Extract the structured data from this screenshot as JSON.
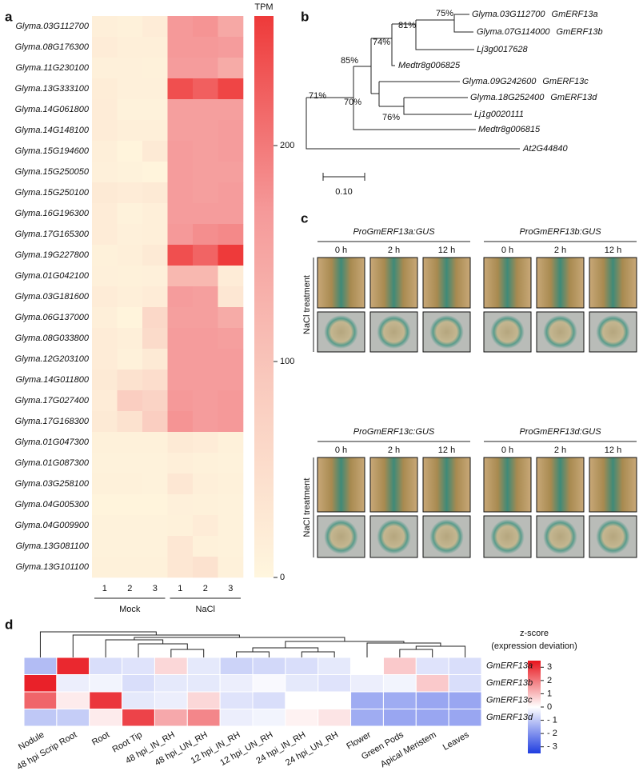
{
  "panel_a": {
    "label": "a",
    "type": "heatmap",
    "rows": [
      "Glyma.03G112700",
      "Glyma.08G176300",
      "Glyma.11G230100",
      "Glyma.13G333100",
      "Glyma.14G061800",
      "Glyma.14G148100",
      "Glyma.15G194600",
      "Glyma.15G250050",
      "Glyma.15G250100",
      "Glyma.16G196300",
      "Glyma.17G165300",
      "Glyma.19G227800",
      "Glyma.01G042100",
      "Glyma.03G181600",
      "Glyma.06G137000",
      "Glyma.08G033800",
      "Glyma.12G203100",
      "Glyma.14G011800",
      "Glyma.17G027400",
      "Glyma.17G168300",
      "Glyma.01G047300",
      "Glyma.01G087300",
      "Glyma.03G258100",
      "Glyma.04G005300",
      "Glyma.04G009900",
      "Glyma.13G081100",
      "Glyma.13G101100"
    ],
    "columns": [
      "1",
      "2",
      "3",
      "1",
      "2",
      "3"
    ],
    "groups": [
      "Mock",
      "NaCl"
    ],
    "values": [
      [
        15,
        10,
        20,
        170,
        175,
        145
      ],
      [
        20,
        15,
        15,
        170,
        170,
        165
      ],
      [
        12,
        12,
        10,
        165,
        165,
        140
      ],
      [
        18,
        12,
        12,
        240,
        225,
        250
      ],
      [
        20,
        8,
        8,
        160,
        160,
        160
      ],
      [
        20,
        15,
        15,
        160,
        160,
        165
      ],
      [
        15,
        5,
        25,
        165,
        160,
        165
      ],
      [
        12,
        8,
        5,
        165,
        160,
        160
      ],
      [
        25,
        20,
        25,
        165,
        160,
        165
      ],
      [
        20,
        8,
        15,
        165,
        165,
        165
      ],
      [
        20,
        12,
        15,
        170,
        180,
        185
      ],
      [
        10,
        15,
        25,
        240,
        220,
        260
      ],
      [
        12,
        10,
        12,
        120,
        120,
        20
      ],
      [
        20,
        15,
        20,
        165,
        160,
        30
      ],
      [
        15,
        5,
        60,
        160,
        160,
        140
      ],
      [
        20,
        15,
        55,
        165,
        165,
        160
      ],
      [
        20,
        10,
        25,
        165,
        165,
        165
      ],
      [
        25,
        40,
        50,
        165,
        165,
        165
      ],
      [
        20,
        80,
        70,
        170,
        165,
        170
      ],
      [
        25,
        40,
        80,
        175,
        165,
        170
      ],
      [
        10,
        10,
        10,
        25,
        20,
        10
      ],
      [
        8,
        8,
        8,
        15,
        10,
        8
      ],
      [
        10,
        10,
        8,
        30,
        15,
        10
      ],
      [
        5,
        5,
        5,
        12,
        10,
        8
      ],
      [
        8,
        8,
        8,
        10,
        20,
        8
      ],
      [
        8,
        8,
        8,
        30,
        10,
        8
      ],
      [
        10,
        10,
        10,
        30,
        40,
        10
      ]
    ],
    "colorbar": {
      "title": "TPM",
      "range": [
        0,
        260
      ],
      "ticks": [
        0,
        100,
        200
      ]
    }
  },
  "panel_b": {
    "label": "b",
    "leaves": [
      {
        "name": "Glyma.03G112700",
        "alias": "GmERF13a"
      },
      {
        "name": "Glyma.07G114000",
        "alias": "GmERF13b"
      },
      {
        "name": "Lj3g0017628"
      },
      {
        "name": "Medtr8g006825"
      },
      {
        "name": "Glyma.09G242600",
        "alias": "GmERF13c"
      },
      {
        "name": "Glyma.18G252400",
        "alias": "GmERF13d"
      },
      {
        "name": "Lj1g0020111"
      },
      {
        "name": "Medtr8g006815"
      },
      {
        "name": "At2G44840"
      }
    ],
    "bootstrap": [
      "75%",
      "81%",
      "74%",
      "85%",
      "70%",
      "76%",
      "71%"
    ],
    "scale": "0.10"
  },
  "panel_c": {
    "label": "c",
    "blocks": [
      {
        "treatment": "NaCl treatment",
        "constructs": [
          {
            "title": "ProGmERF13a:GUS",
            "times": [
              "0 h",
              "2 h",
              "12 h"
            ]
          },
          {
            "title": "ProGmERF13b:GUS",
            "times": [
              "0 h",
              "2 h",
              "12 h"
            ]
          }
        ]
      },
      {
        "treatment": "NaCl treatment",
        "constructs": [
          {
            "title": "ProGmERF13c:GUS",
            "times": [
              "0 h",
              "2 h",
              "12 h"
            ]
          },
          {
            "title": "ProGmERF13d:GUS",
            "times": [
              "0 h",
              "2 h",
              "12 h"
            ]
          }
        ]
      }
    ]
  },
  "panel_d": {
    "label": "d",
    "type": "heatmap",
    "rows": [
      "GmERF13a",
      "GmERF13b",
      "GmERF13c",
      "GmERF13d"
    ],
    "columns": [
      "Nodule",
      "48 hpi Scrip Root",
      "Root",
      "Root Tip",
      "48 hpi_IN_RH",
      "48 hpi_UN_RH",
      "12 hpi_IN_RH",
      "12 hpi_UN_RH",
      "24 hpi_IN_RH",
      "24 hpi_UN_RH",
      "Flower",
      "Green Pods",
      "Apical Meristem",
      "Leaves"
    ],
    "values": [
      [
        -1.2,
        3.2,
        -0.6,
        -0.5,
        0.6,
        -0.4,
        -0.8,
        -0.7,
        -0.6,
        -0.4,
        0,
        0.8,
        -0.5,
        -0.6
      ],
      [
        3.3,
        -0.3,
        -0.2,
        -0.6,
        -0.4,
        -0.4,
        -0.3,
        -0.1,
        -0.4,
        -0.5,
        -0.3,
        -0.2,
        0.8,
        -0.6
      ],
      [
        2.3,
        0.3,
        3.0,
        -0.4,
        -0.3,
        0.6,
        -0.5,
        -0.6,
        0,
        0,
        -1.5,
        -1.5,
        -1.6,
        -1.6
      ],
      [
        -1.0,
        -0.9,
        0.3,
        2.8,
        1.3,
        1.8,
        -0.3,
        -0.2,
        0.2,
        0.4,
        -1.5,
        -1.6,
        -1.6,
        -1.6
      ]
    ],
    "colorbar": {
      "title": [
        "z-score",
        "(expression deviation)"
      ],
      "range": [
        -3.5,
        3.5
      ],
      "ticks": [
        3,
        2,
        1,
        0,
        {
          "value": -1,
          "label": "- 1"
        },
        {
          "value": -2,
          "label": "- 2"
        },
        {
          "value": -3,
          "label": "- 3"
        }
      ]
    }
  }
}
